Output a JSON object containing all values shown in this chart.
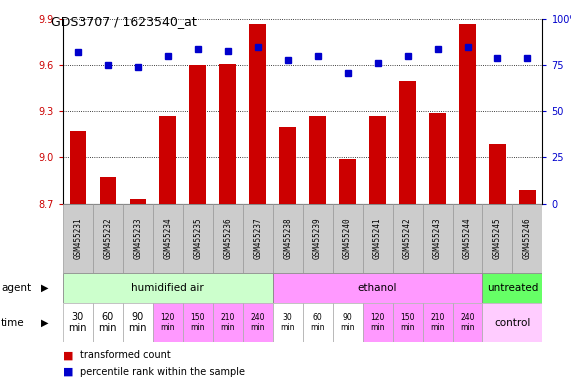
{
  "title": "GDS3707 / 1623540_at",
  "samples": [
    "GSM455231",
    "GSM455232",
    "GSM455233",
    "GSM455234",
    "GSM455235",
    "GSM455236",
    "GSM455237",
    "GSM455238",
    "GSM455239",
    "GSM455240",
    "GSM455241",
    "GSM455242",
    "GSM455243",
    "GSM455244",
    "GSM455245",
    "GSM455246"
  ],
  "transformed_count": [
    9.17,
    8.87,
    8.73,
    9.27,
    9.6,
    9.61,
    9.87,
    9.2,
    9.27,
    8.99,
    9.27,
    9.5,
    9.29,
    9.87,
    9.09,
    8.79
  ],
  "percentile_rank": [
    82,
    75,
    74,
    80,
    84,
    83,
    85,
    78,
    80,
    71,
    76,
    80,
    84,
    85,
    79,
    79
  ],
  "ylim_left": [
    8.7,
    9.9
  ],
  "ylim_right": [
    0,
    100
  ],
  "yticks_left": [
    8.7,
    9.0,
    9.3,
    9.6,
    9.9
  ],
  "yticks_right": [
    0,
    25,
    50,
    75,
    100
  ],
  "bar_color": "#cc0000",
  "dot_color": "#0000cc",
  "agent_groups": [
    {
      "label": "humidified air",
      "start": 0,
      "end": 7,
      "color": "#ccffcc"
    },
    {
      "label": "ethanol",
      "start": 7,
      "end": 14,
      "color": "#ff99ff"
    },
    {
      "label": "untreated",
      "start": 14,
      "end": 16,
      "color": "#66ff66"
    }
  ],
  "time_labels": [
    "30\nmin",
    "60\nmin",
    "90\nmin",
    "120\nmin",
    "150\nmin",
    "210\nmin",
    "240\nmin",
    "30\nmin",
    "60\nmin",
    "90\nmin",
    "120\nmin",
    "150\nmin",
    "210\nmin",
    "240\nmin"
  ],
  "time_colors_white_idx": [
    0,
    1,
    2,
    7,
    8,
    9
  ],
  "time_color_pink": "#ff99ff",
  "time_color_white": "#ffffff",
  "control_label": "control",
  "control_color": "#ffccff",
  "legend_red": "transformed count",
  "legend_blue": "percentile rank within the sample",
  "bg_color": "#ffffff",
  "label_color_left": "#cc0000",
  "label_color_right": "#0000cc",
  "sample_box_color": "#cccccc",
  "sample_box_edge": "#999999"
}
